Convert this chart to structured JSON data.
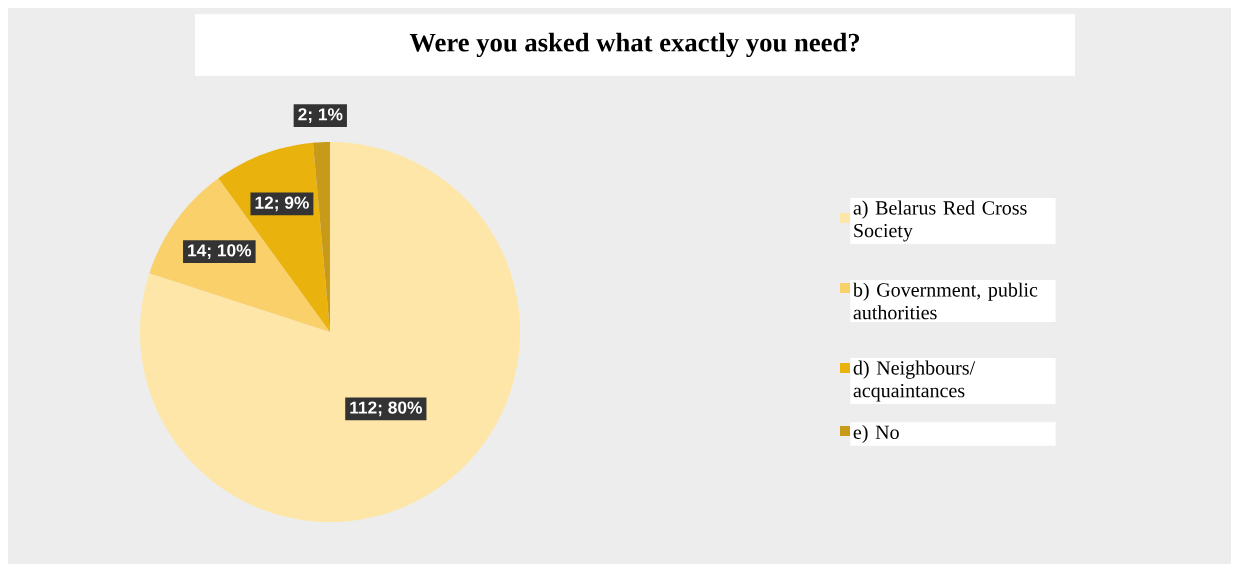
{
  "chart_data": {
    "type": "pie",
    "title": "Were you asked what exactly you need?",
    "categories": [
      "a) Belarus Red Cross Society",
      "b) Government, public authorities",
      "d) Neighbours/ acquaintances",
      "e) No"
    ],
    "values": [
      112,
      14,
      12,
      2
    ],
    "value_labels": [
      "112; 80%",
      "14; 10%",
      "12; 9%",
      "2; 1%"
    ],
    "colors": [
      "#fde6a8",
      "#f9d06a",
      "#eab20c",
      "#c89a1a"
    ],
    "legend": "right"
  }
}
